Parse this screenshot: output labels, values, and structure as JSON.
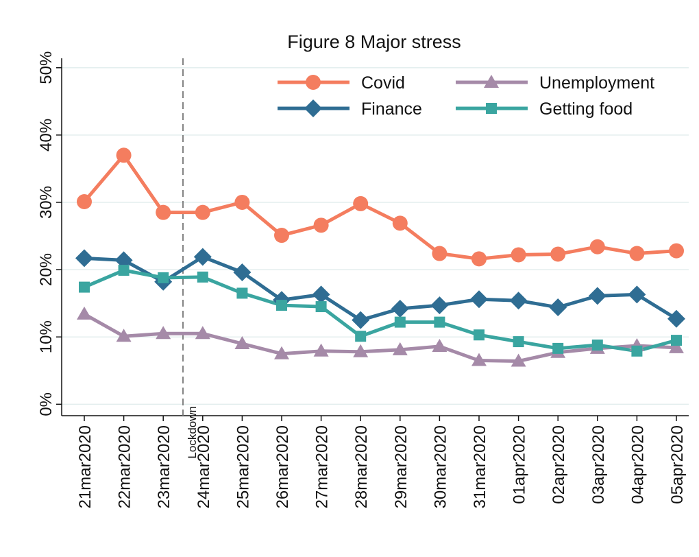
{
  "chart_data": {
    "type": "line",
    "title": "Figure 8 Major stress",
    "categories": [
      "21mar2020",
      "22mar2020",
      "23mar2020",
      "24mar2020",
      "25mar2020",
      "26mar2020",
      "27mar2020",
      "28mar2020",
      "29mar2020",
      "30mar2020",
      "31mar2020",
      "01apr2020",
      "02apr2020",
      "03apr2020",
      "04apr2020",
      "05apr2020"
    ],
    "series": [
      {
        "name": "Covid",
        "color": "#f47d5f",
        "marker": "circle",
        "values": [
          30.1,
          37.0,
          28.5,
          28.5,
          30.0,
          25.1,
          26.6,
          29.8,
          26.9,
          22.4,
          21.6,
          22.2,
          22.3,
          23.4,
          22.4,
          22.8
        ]
      },
      {
        "name": "Finance",
        "color": "#2f6d93",
        "marker": "diamond",
        "values": [
          21.7,
          21.4,
          18.2,
          21.9,
          19.6,
          15.5,
          16.3,
          12.5,
          14.2,
          14.7,
          15.6,
          15.4,
          14.4,
          16.1,
          16.3,
          12.7
        ]
      },
      {
        "name": "Unemployment",
        "color": "#a58aa8",
        "marker": "triangle",
        "values": [
          13.4,
          10.1,
          10.5,
          10.5,
          9.0,
          7.5,
          7.9,
          7.8,
          8.1,
          8.6,
          6.5,
          6.4,
          7.7,
          8.3,
          8.7,
          8.4
        ]
      },
      {
        "name": "Getting food",
        "color": "#3aa5a0",
        "marker": "square",
        "values": [
          17.4,
          19.9,
          18.8,
          18.9,
          16.5,
          14.7,
          14.5,
          10.1,
          12.2,
          12.2,
          10.3,
          9.3,
          8.3,
          8.8,
          7.9,
          9.5
        ]
      }
    ],
    "ylim": [
      -1.7,
      51.4
    ],
    "yticks": [
      {
        "value": 0,
        "label": "0%"
      },
      {
        "value": 10,
        "label": "10%"
      },
      {
        "value": 20,
        "label": "20%"
      },
      {
        "value": 30,
        "label": "30%"
      },
      {
        "value": 40,
        "label": "40%"
      },
      {
        "value": 50,
        "label": "50%"
      }
    ],
    "grid": true,
    "annotations": [
      {
        "text": "Lockdown"
      }
    ]
  }
}
